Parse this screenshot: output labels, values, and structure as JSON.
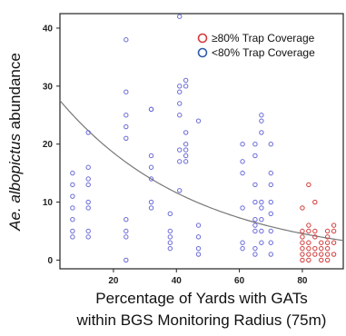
{
  "chart_data": {
    "type": "scatter",
    "xlabel_line1": "Percentage of Yards with GATs",
    "xlabel_line2": "within BGS Monitoring Radius (75m)",
    "ylabel_prefix": "Ae. albopictus",
    "ylabel_suffix": " abundance",
    "xlim": [
      3,
      93
    ],
    "ylim": [
      -1.5,
      42.5
    ],
    "x_ticks": [
      20,
      40,
      60,
      80
    ],
    "y_ticks": [
      0,
      10,
      20,
      30,
      40
    ],
    "grid": false,
    "legend_position": "top-right",
    "legend": [
      {
        "label": "≥80% Trap Coverage",
        "color": "#d43a3a"
      },
      {
        "label": "<80% Trap Coverage",
        "color": "#2d5aa8"
      }
    ],
    "fit_curve": {
      "type": "exponential",
      "color": "#777777",
      "a": 29.5,
      "b": -0.0233
    },
    "series": [
      {
        "color": "#6a6ad8",
        "points": [
          [
            7,
            15
          ],
          [
            7,
            13
          ],
          [
            7,
            11
          ],
          [
            7,
            9
          ],
          [
            7,
            7
          ],
          [
            7,
            5
          ],
          [
            7,
            4
          ],
          [
            12,
            22
          ],
          [
            12,
            16
          ],
          [
            12,
            14
          ],
          [
            12,
            13
          ],
          [
            12,
            10
          ],
          [
            12,
            9
          ],
          [
            12,
            5
          ],
          [
            12,
            4
          ],
          [
            24,
            38
          ],
          [
            24,
            29
          ],
          [
            24,
            25
          ],
          [
            24,
            23
          ],
          [
            24,
            21
          ],
          [
            24,
            7
          ],
          [
            24,
            5
          ],
          [
            24,
            4
          ],
          [
            24,
            0
          ],
          [
            32,
            26
          ],
          [
            32,
            26
          ],
          [
            32,
            18
          ],
          [
            32,
            16
          ],
          [
            32,
            14
          ],
          [
            32,
            10
          ],
          [
            32,
            9
          ],
          [
            38,
            8
          ],
          [
            38,
            5
          ],
          [
            38,
            4
          ],
          [
            38,
            3
          ],
          [
            38,
            2
          ],
          [
            41,
            42
          ],
          [
            41,
            30
          ],
          [
            41,
            29
          ],
          [
            41,
            27
          ],
          [
            41,
            25
          ],
          [
            41,
            19
          ],
          [
            41,
            17
          ],
          [
            41,
            12
          ],
          [
            43,
            31
          ],
          [
            43,
            30
          ],
          [
            43,
            22
          ],
          [
            43,
            20
          ],
          [
            43,
            19
          ],
          [
            43,
            18
          ],
          [
            43,
            17
          ],
          [
            47,
            24
          ],
          [
            47,
            6
          ],
          [
            47,
            4
          ],
          [
            47,
            2
          ],
          [
            47,
            1
          ],
          [
            61,
            20
          ],
          [
            61,
            17
          ],
          [
            61,
            15
          ],
          [
            61,
            9
          ],
          [
            61,
            3
          ],
          [
            61,
            2
          ],
          [
            65,
            20
          ],
          [
            65,
            18
          ],
          [
            65,
            13
          ],
          [
            65,
            10
          ],
          [
            65,
            7
          ],
          [
            65,
            6
          ],
          [
            65,
            5
          ],
          [
            65,
            2
          ],
          [
            65,
            1
          ],
          [
            67,
            25
          ],
          [
            67,
            24
          ],
          [
            67,
            22
          ],
          [
            67,
            10
          ],
          [
            67,
            9
          ],
          [
            67,
            7
          ],
          [
            67,
            5
          ],
          [
            67,
            3
          ],
          [
            70,
            20
          ],
          [
            70,
            15
          ],
          [
            70,
            13
          ],
          [
            70,
            10
          ],
          [
            70,
            8
          ],
          [
            70,
            5
          ],
          [
            70,
            3
          ],
          [
            70,
            1
          ]
        ]
      },
      {
        "color": "#d43a3a",
        "points": [
          [
            80,
            5
          ],
          [
            80,
            4
          ],
          [
            80,
            3
          ],
          [
            80,
            2
          ],
          [
            80,
            1
          ],
          [
            80,
            0
          ],
          [
            80,
            9
          ],
          [
            82,
            13
          ],
          [
            82,
            6
          ],
          [
            82,
            5
          ],
          [
            82,
            3
          ],
          [
            82,
            2
          ],
          [
            82,
            1
          ],
          [
            82,
            0
          ],
          [
            84,
            10
          ],
          [
            84,
            5
          ],
          [
            84,
            4
          ],
          [
            84,
            2
          ],
          [
            84,
            1
          ],
          [
            86,
            3
          ],
          [
            86,
            2
          ],
          [
            86,
            1
          ],
          [
            86,
            0
          ],
          [
            88,
            5
          ],
          [
            88,
            4
          ],
          [
            88,
            3
          ],
          [
            88,
            2
          ],
          [
            88,
            1
          ],
          [
            88,
            0
          ],
          [
            90,
            6
          ],
          [
            90,
            5
          ],
          [
            90,
            3
          ],
          [
            90,
            1
          ]
        ]
      }
    ]
  }
}
